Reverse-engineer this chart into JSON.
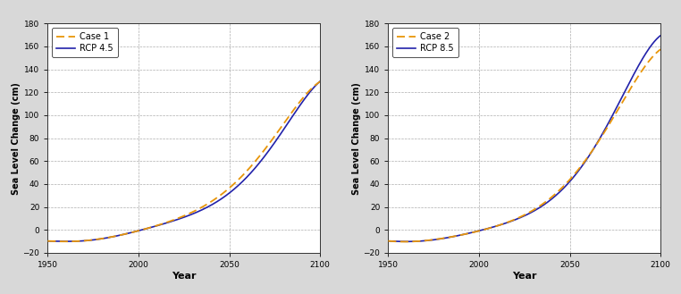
{
  "xlim": [
    1950,
    2100
  ],
  "ylim": [
    -20,
    180
  ],
  "yticks": [
    -20,
    0,
    20,
    40,
    60,
    80,
    100,
    120,
    140,
    160,
    180
  ],
  "xticks": [
    1950,
    2000,
    2050,
    2100
  ],
  "xlabel": "Year",
  "ylabel": "Sea Level Change (cm)",
  "panel1": {
    "legend1_label": "Case 1",
    "legend2_label": "RCP 4.5"
  },
  "panel2": {
    "legend1_label": "Case 2",
    "legend2_label": "RCP 8.5"
  },
  "case_color": "#E8960A",
  "rcp45_color": "#2222AA",
  "rcp85_color": "#2222AA",
  "bg_color": "#FFFFFF",
  "fig_bg_color": "#D8D8D8",
  "grid_color": "#999999",
  "panel1_case1_keypoints_x": [
    1950,
    1960,
    1970,
    1980,
    1990,
    1995,
    2000,
    2005,
    2010,
    2020,
    2030,
    2040,
    2050,
    2060,
    2070,
    2080,
    2090,
    2100
  ],
  "panel1_case1_keypoints_y": [
    -10,
    -9.5,
    -9,
    -8,
    -6,
    -4,
    0,
    3,
    5,
    9,
    15,
    24,
    36,
    52,
    72,
    94,
    112,
    130
  ],
  "panel1_rcp45_keypoints_x": [
    1950,
    1960,
    1970,
    1980,
    1990,
    1995,
    2000,
    2005,
    2010,
    2020,
    2030,
    2040,
    2050,
    2060,
    2070,
    2080,
    2090,
    2100
  ],
  "panel1_rcp45_keypoints_y": [
    -10,
    -9.5,
    -9,
    -8,
    -6,
    -4,
    0,
    3,
    5,
    8,
    13,
    21,
    32,
    47,
    66,
    88,
    110,
    130
  ],
  "panel2_case2_keypoints_x": [
    1950,
    1960,
    1970,
    1980,
    1990,
    1995,
    2000,
    2005,
    2010,
    2020,
    2030,
    2040,
    2050,
    2060,
    2070,
    2080,
    2090,
    2100
  ],
  "panel2_case2_keypoints_y": [
    -10,
    -9.5,
    -9,
    -8,
    -6,
    -4,
    0,
    3,
    5,
    9,
    16,
    28,
    44,
    64,
    88,
    115,
    138,
    158
  ],
  "panel2_rcp85_keypoints_x": [
    1950,
    1960,
    1970,
    1980,
    1990,
    1995,
    2000,
    2005,
    2010,
    2020,
    2030,
    2040,
    2050,
    2060,
    2070,
    2080,
    2090,
    2100
  ],
  "panel2_rcp85_keypoints_y": [
    -10,
    -9.5,
    -9,
    -8,
    -6,
    -4,
    0,
    3,
    5,
    9,
    15,
    26,
    42,
    64,
    90,
    120,
    148,
    170
  ]
}
